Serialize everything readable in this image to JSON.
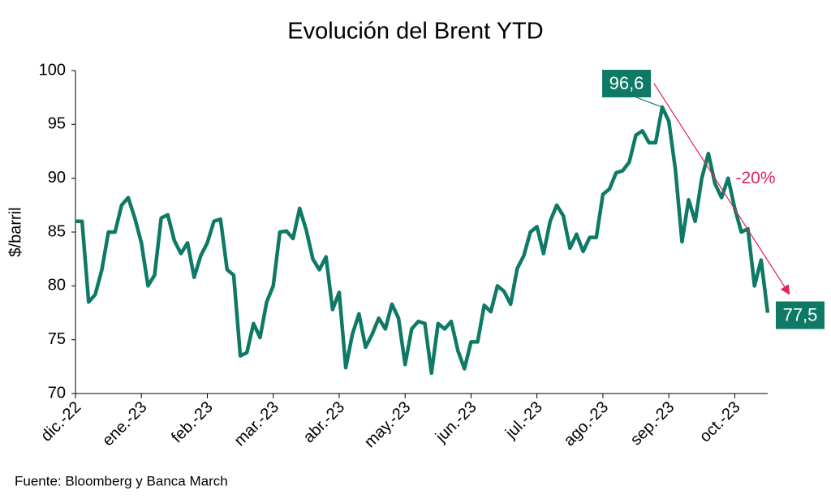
{
  "chart_data": {
    "type": "line",
    "title": "Evolución del Brent YTD",
    "y_label": "$/barril",
    "source": "Fuente: Bloomberg y Banca March",
    "annotation": "-20%",
    "color": "#0e7a66",
    "arrow_color": "#e0245e",
    "ylim": [
      70,
      100
    ],
    "yticks": [
      70,
      75,
      80,
      85,
      90,
      95,
      100
    ],
    "grid": false,
    "categories": [
      "dic.-22",
      null,
      null,
      null,
      null,
      null,
      null,
      null,
      null,
      null,
      "ene.-23",
      null,
      null,
      null,
      null,
      null,
      null,
      null,
      null,
      null,
      "feb.-23",
      null,
      null,
      null,
      null,
      null,
      null,
      null,
      null,
      null,
      "mar.-23",
      null,
      null,
      null,
      null,
      null,
      null,
      null,
      null,
      null,
      "abr.-23",
      null,
      null,
      null,
      null,
      null,
      null,
      null,
      null,
      null,
      "may.-23",
      null,
      null,
      null,
      null,
      null,
      null,
      null,
      null,
      null,
      "jun.-23",
      null,
      null,
      null,
      null,
      null,
      null,
      null,
      null,
      null,
      "jul.-23",
      null,
      null,
      null,
      null,
      null,
      null,
      null,
      null,
      null,
      "ago.-23",
      null,
      null,
      null,
      null,
      null,
      null,
      null,
      null,
      null,
      "sep.-23",
      null,
      null,
      null,
      null,
      null,
      null,
      null,
      null,
      null,
      "oct.-23",
      null,
      null,
      null,
      null,
      null
    ],
    "values": [
      86,
      86,
      78.5,
      79.2,
      81.5,
      85,
      85,
      87.5,
      88.2,
      86.3,
      84,
      80,
      81,
      86.3,
      86.6,
      84.2,
      83,
      84,
      80.8,
      82.8,
      84,
      86,
      86.2,
      81.5,
      81,
      73.5,
      73.8,
      76.5,
      75.2,
      78.5,
      80,
      85,
      85.1,
      84.4,
      87.2,
      85.2,
      82.5,
      81.5,
      82.7,
      77.8,
      79.4,
      72.4,
      75.5,
      77.4,
      74.3,
      75.5,
      77,
      76,
      78.3,
      77,
      72.7,
      76,
      76.7,
      76.5,
      71.9,
      76.5,
      76,
      76.7,
      74,
      72.3,
      74.8,
      74.8,
      78.2,
      77.6,
      80,
      79.5,
      78.3,
      81.6,
      82.8,
      85,
      85.5,
      83,
      86,
      87.5,
      86.5,
      83.5,
      84.8,
      83.2,
      84.5,
      84.5,
      88.5,
      89,
      90.5,
      90.7,
      91.5,
      94,
      94.4,
      93.3,
      93.3,
      96.6,
      95.3,
      90.8,
      84.1,
      88,
      86,
      90,
      92.3,
      89.5,
      88.2,
      90,
      87.2,
      85,
      85.3,
      80,
      82.4,
      77.5
    ],
    "value_labels": [
      null,
      null,
      null,
      null,
      null,
      null,
      null,
      null,
      null,
      null,
      null,
      null,
      null,
      null,
      null,
      null,
      null,
      null,
      null,
      null,
      null,
      null,
      null,
      null,
      null,
      null,
      null,
      null,
      null,
      null,
      null,
      null,
      null,
      null,
      null,
      null,
      null,
      null,
      null,
      null,
      null,
      null,
      null,
      null,
      null,
      null,
      null,
      null,
      null,
      null,
      null,
      null,
      null,
      null,
      null,
      null,
      null,
      null,
      null,
      null,
      null,
      null,
      null,
      null,
      null,
      null,
      null,
      null,
      null,
      null,
      null,
      null,
      null,
      null,
      null,
      null,
      null,
      null,
      null,
      null,
      null,
      null,
      null,
      null,
      null,
      null,
      null,
      null,
      null,
      "96,6",
      null,
      null,
      null,
      null,
      null,
      null,
      null,
      null,
      null,
      null,
      null,
      null,
      null,
      null,
      null,
      "77,5"
    ]
  }
}
